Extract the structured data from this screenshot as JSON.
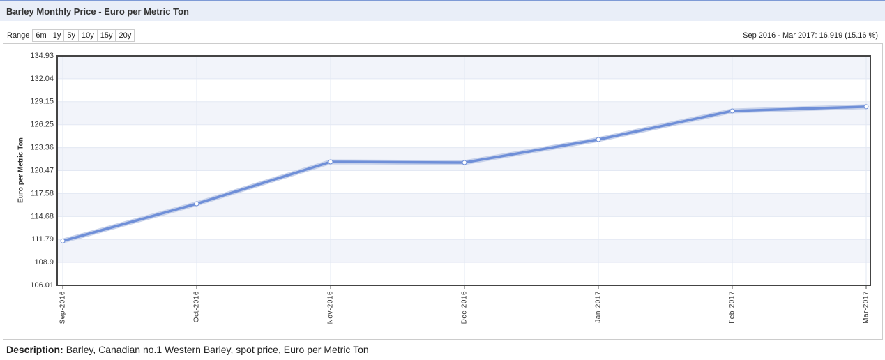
{
  "header": {
    "title": "Barley Monthly Price - Euro per Metric Ton"
  },
  "range": {
    "label": "Range",
    "buttons": [
      "6m",
      "1y",
      "5y",
      "10y",
      "15y",
      "20y"
    ]
  },
  "summary": "Sep 2016 - Mar 2017: 16.919 (15.16 %)",
  "chart_data": {
    "type": "line",
    "y_label": "Euro per Metric Ton",
    "categories": [
      "Sep-2016",
      "Oct-2016",
      "Nov-2016",
      "Dec-2016",
      "Jan-2017",
      "Feb-2017",
      "Mar-2017"
    ],
    "values": [
      111.6,
      116.29,
      121.57,
      121.48,
      124.38,
      127.99,
      128.52
    ],
    "color": "#6f8fd8",
    "ylim": [
      106.01,
      134.93
    ],
    "yticks": [
      106.01,
      108.9,
      111.79,
      114.68,
      117.58,
      120.47,
      123.36,
      126.25,
      129.15,
      132.04,
      134.93
    ],
    "grid": true
  },
  "description": {
    "label": "Description:",
    "text": "Barley, Canadian no.1 Western Barley, spot price, Euro per Metric Ton"
  }
}
